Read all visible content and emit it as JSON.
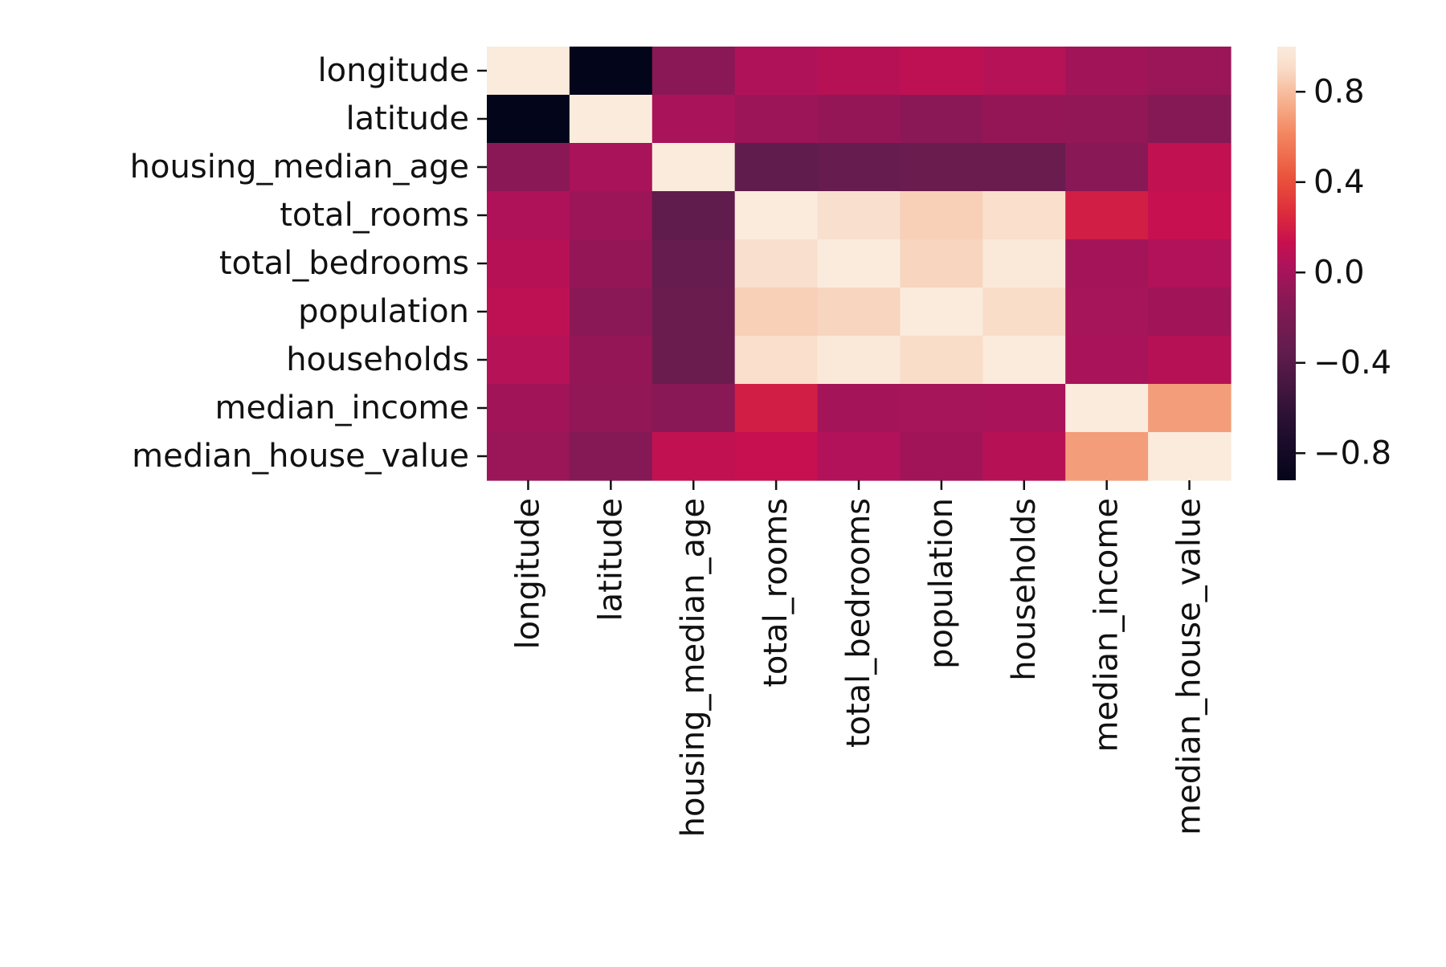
{
  "chart_data": {
    "type": "heatmap",
    "title": "",
    "xlabel": "",
    "ylabel": "",
    "rows": [
      "longitude",
      "latitude",
      "housing_median_age",
      "total_rooms",
      "total_bedrooms",
      "population",
      "households",
      "median_income",
      "median_house_value"
    ],
    "columns": [
      "longitude",
      "latitude",
      "housing_median_age",
      "total_rooms",
      "total_bedrooms",
      "population",
      "households",
      "median_income",
      "median_house_value"
    ],
    "values": [
      [
        1.0,
        -0.92,
        -0.11,
        0.04,
        0.07,
        0.1,
        0.06,
        -0.02,
        -0.05
      ],
      [
        -0.92,
        1.0,
        0.01,
        -0.04,
        -0.07,
        -0.11,
        -0.07,
        -0.08,
        -0.14
      ],
      [
        -0.11,
        0.01,
        1.0,
        -0.36,
        -0.32,
        -0.3,
        -0.3,
        -0.12,
        0.11
      ],
      [
        0.04,
        -0.04,
        -0.36,
        1.0,
        0.93,
        0.86,
        0.92,
        0.2,
        0.13
      ],
      [
        0.07,
        -0.07,
        -0.32,
        0.93,
        1.0,
        0.88,
        0.98,
        -0.01,
        0.05
      ],
      [
        0.1,
        -0.11,
        -0.3,
        0.86,
        0.88,
        1.0,
        0.91,
        0.0,
        -0.02
      ],
      [
        0.06,
        -0.07,
        -0.3,
        0.92,
        0.98,
        0.91,
        1.0,
        0.01,
        0.07
      ],
      [
        -0.02,
        -0.08,
        -0.12,
        0.2,
        -0.01,
        0.0,
        0.01,
        1.0,
        0.69
      ],
      [
        -0.05,
        -0.14,
        0.11,
        0.13,
        0.05,
        -0.02,
        0.07,
        0.69,
        1.0
      ]
    ],
    "vmin": -0.92,
    "vmax": 1.0,
    "colormap": "rocket",
    "colorbar": {
      "ticks": [
        0.8,
        0.4,
        0.0,
        -0.4,
        -0.8
      ],
      "tick_labels": [
        "0.8",
        "0.4",
        "0.0",
        "−0.4",
        "−0.8"
      ]
    }
  }
}
